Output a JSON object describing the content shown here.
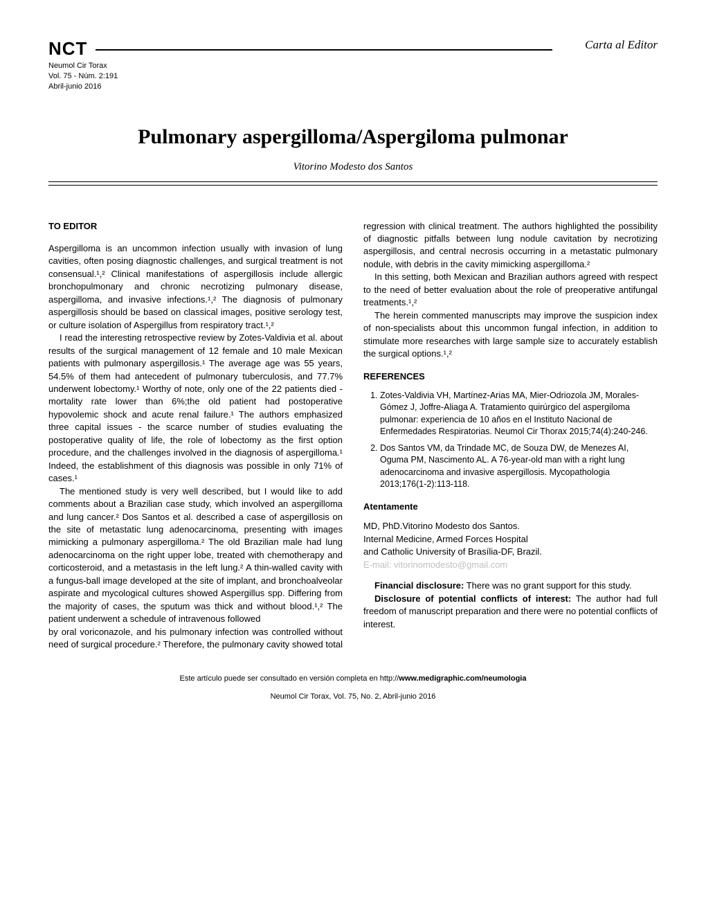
{
  "header": {
    "nct": "NCT",
    "journal": "Neumol Cir Torax",
    "volume": "Vol. 75 - Núm. 2:191",
    "date": "Abril-junio 2016",
    "section": "Carta al Editor"
  },
  "title": "Pulmonary aspergilloma/Aspergiloma pulmonar",
  "author": "Vitorino Modesto dos Santos",
  "body": {
    "to_editor": "TO EDITOR",
    "p1": "Aspergilloma is an uncommon infection usually with invasion of lung cavities, often posing diagnostic challenges, and surgical treatment is not consensual.¹,² Clinical manifestations of aspergillosis include allergic bronchopulmonary and chronic necrotizing pulmonary disease, aspergilloma, and invasive infections.¹,² The diagnosis of pulmonary aspergillosis should be based on classical images, positive serology test, or culture isolation of Aspergillus from respiratory tract.¹,²",
    "p2": "I read the interesting retrospective review by Zotes-Valdivia et al. about results of the surgical management of 12 female and 10 male Mexican patients with pulmonary aspergillosis.¹ The average age was 55 years, 54.5% of them had antecedent of pulmonary tuberculosis, and 77.7% underwent lobectomy.¹ Worthy of note, only one of the 22 patients died - mortality rate lower than 6%;the old patient had postoperative hypovolemic shock and acute renal failure.¹ The authors emphasized three capital issues - the scarce number of studies evaluating the postoperative quality of life, the role of lobectomy as the first option procedure, and the challenges involved in the diagnosis of aspergilloma.¹ Indeed, the establishment of this diagnosis was possible in only 71% of cases.¹",
    "p3": "The mentioned study is very well described, but I would like to add comments about a Brazilian case study, which involved an aspergilloma and lung cancer.² Dos Santos et al. described a case of aspergillosis on the site of metastatic lung adenocarcinoma, presenting with images mimicking a pulmonary aspergilloma.² The old Brazilian male had lung adenocarcinoma on the right upper lobe, treated with chemotherapy and corticosteroid, and a metastasis in the left lung.² A thin-walled cavity with a fungus-ball image developed at the site of implant, and bronchoalveolar aspirate and mycological cultures showed Aspergillus spp. Differing from the majority of cases, the sputum was thick and without blood.¹,² The patient underwent a schedule of intravenous followed",
    "p4": "by oral voriconazole, and his pulmonary infection was controlled without need of surgical procedure.² Therefore, the pulmonary cavity showed total regression with clinical treatment. The authors highlighted the possibility of diagnostic pitfalls between lung nodule cavitation by necrotizing aspergillosis, and central necrosis occurring in a metastatic pulmonary nodule, with debris in the cavity mimicking aspergilloma.²",
    "p5": "In this setting, both Mexican and Brazilian authors agreed with respect to the need of better evaluation about the role of preoperative antifungal treatments.¹,²",
    "p6": "The herein commented manuscripts may improve the suspicion index of non-specialists about this uncommon fungal infection, in addition to stimulate more researches with large sample size to accurately establish the surgical options.¹,²"
  },
  "references": {
    "heading": "REFERENCES",
    "items": [
      "Zotes-Valdivia VH, Martínez-Arias MA, Mier-Odriozola JM, Morales-Gómez J, Joffre-Aliaga A. Tratamiento quirúrgico del aspergiloma pulmonar: experiencia de 10 años en el Instituto Nacional de Enfermedades Respiratorias. Neumol Cir Thorax 2015;74(4):240-246.",
      "Dos Santos VM, da Trindade MC, de Souza DW, de Menezes AI, Oguma PM, Nascimento AL. A 76-year-old man with a right lung adenocarcinoma and invasive aspergillosis. Mycopathologia 2013;176(1-2):113-118."
    ]
  },
  "signature": {
    "heading": "Atentamente",
    "line1": "MD, PhD.Vitorino Modesto dos Santos.",
    "line2": "Internal Medicine, Armed Forces Hospital",
    "line3": "and Catholic University of Brasília-DF, Brazil.",
    "line4": "E-mail: vitorinomodesto@gmail.com"
  },
  "disclosures": {
    "financial_lead": "Financial disclosure:",
    "financial_text": " There was no grant support for this study.",
    "conflict_lead": "Disclosure of potential conflicts of interest:",
    "conflict_text": " The author had full freedom of manuscript preparation and there were no potential conflicts of interest."
  },
  "footer": {
    "cite_prefix": "Este artículo puede ser consultado en versión completa en http://",
    "cite_bold": "www.medigraphic.com/neumologia",
    "journal_line": "Neumol Cir Torax, Vol. 75, No. 2, Abril-junio 2016"
  }
}
